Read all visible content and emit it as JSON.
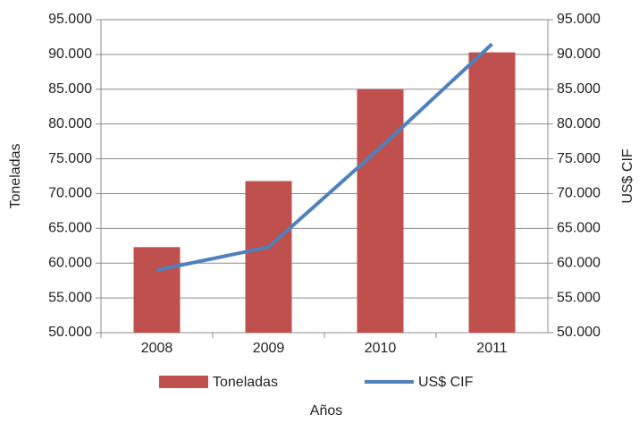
{
  "chart_data": {
    "type": "bar-line",
    "x_label": "Años",
    "y_label": "Toneladas",
    "y2_label": "US$ CIF",
    "categories": [
      "2008",
      "2009",
      "2010",
      "2011"
    ],
    "series": [
      {
        "name": "Toneladas",
        "type": "bar",
        "color": "#c0504d",
        "values": [
          62300,
          71800,
          85000,
          90300
        ]
      },
      {
        "name": "US$ CIF",
        "type": "line",
        "color": "#4f81bd",
        "axis": "y2",
        "values": [
          59000,
          62300,
          76600,
          91500
        ]
      }
    ],
    "ylim": [
      50000,
      95000
    ],
    "yticks": [
      {
        "value": 50000,
        "label": "50.000"
      },
      {
        "value": 55000,
        "label": "55.000"
      },
      {
        "value": 60000,
        "label": "60.000"
      },
      {
        "value": 65000,
        "label": "65.000"
      },
      {
        "value": 70000,
        "label": "70.000"
      },
      {
        "value": 75000,
        "label": "75.000"
      },
      {
        "value": 80000,
        "label": "80.000"
      },
      {
        "value": 85000,
        "label": "85.000"
      },
      {
        "value": 90000,
        "label": "90.000"
      },
      {
        "value": 95000,
        "label": "95.000"
      }
    ],
    "y2lim": [
      50000,
      95000
    ],
    "y2ticks": [
      {
        "value": 50000,
        "label": "50.000"
      },
      {
        "value": 55000,
        "label": "55.000"
      },
      {
        "value": 60000,
        "label": "60.000"
      },
      {
        "value": 65000,
        "label": "65.000"
      },
      {
        "value": 70000,
        "label": "70.000"
      },
      {
        "value": 75000,
        "label": "75.000"
      },
      {
        "value": 80000,
        "label": "80.000"
      },
      {
        "value": 85000,
        "label": "85.000"
      },
      {
        "value": 90000,
        "label": "90.000"
      },
      {
        "value": 95000,
        "label": "95.000"
      }
    ],
    "grid": true,
    "legend": "bottom"
  }
}
